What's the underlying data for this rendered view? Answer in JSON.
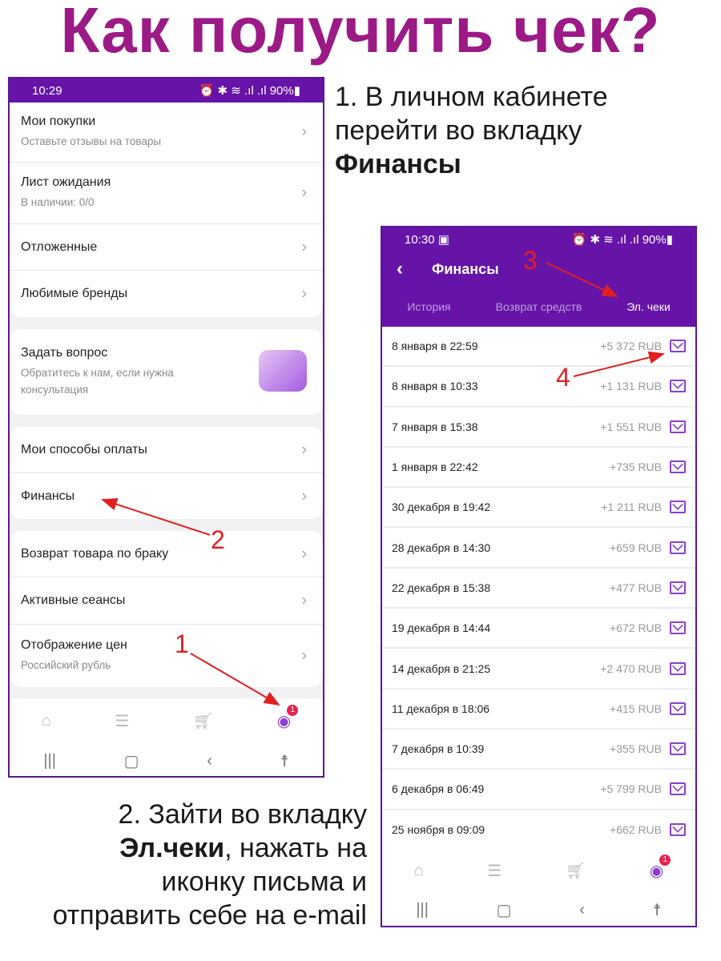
{
  "title": "Как получить чек?",
  "step1": {
    "line1": "1. В личном кабинете",
    "line2": "перейти во вкладку",
    "bold": "Финансы"
  },
  "step2": {
    "num": "2.",
    "l1": " Зайти во вкладку",
    "bold": "Эл.чеки",
    "l2rest": ", нажать на",
    "l3": "иконку письма и",
    "l4": "отправить себе на e-mail"
  },
  "phone1": {
    "time": "10:29",
    "battery": "90%",
    "sections": [
      [
        {
          "label": "Мои покупки",
          "sub": "Оставьте отзывы на товары"
        },
        {
          "label": "Лист ожидания",
          "sub": "В наличии: 0/0"
        },
        {
          "label": "Отложенные"
        },
        {
          "label": "Любимые бренды"
        }
      ],
      [
        {
          "label": "Задать вопрос",
          "sub": "Обратитесь к нам, если нужна консультация"
        }
      ],
      [
        {
          "label": "Мои способы оплаты"
        },
        {
          "label": "Финансы"
        }
      ],
      [
        {
          "label": "Возврат товара по браку"
        },
        {
          "label": "Активные сеансы"
        },
        {
          "label": "Отображение цен",
          "sub": "Российский рубль"
        }
      ]
    ],
    "badge": "1"
  },
  "phone2": {
    "time": "10:30",
    "battery": "90%",
    "header": "Финансы",
    "tabs": [
      "История",
      "Возврат средств",
      "Эл. чеки"
    ],
    "active_tab": "Эл. чеки",
    "rows": [
      {
        "date": "8 января в 22:59",
        "amount": "+5 372 RUB"
      },
      {
        "date": "8 января в 10:33",
        "amount": "+1 131 RUB"
      },
      {
        "date": "7 января в 15:38",
        "amount": "+1 551 RUB"
      },
      {
        "date": "1 января в 22:42",
        "amount": "+735 RUB"
      },
      {
        "date": "30 декабря в 19:42",
        "amount": "+1 211 RUB"
      },
      {
        "date": "28 декабря в 14:30",
        "amount": "+659 RUB"
      },
      {
        "date": "22 декабря в 15:38",
        "amount": "+477 RUB"
      },
      {
        "date": "19 декабря в 14:44",
        "amount": "+672 RUB"
      },
      {
        "date": "14 декабря в 21:25",
        "amount": "+2 470 RUB"
      },
      {
        "date": "11 декабря в 18:06",
        "amount": "+415 RUB"
      },
      {
        "date": "7 декабря в 10:39",
        "amount": "+355 RUB"
      },
      {
        "date": "6 декабря в 06:49",
        "amount": "+5 799 RUB"
      },
      {
        "date": "25 ноября в 09:09",
        "amount": "+662 RUB"
      }
    ],
    "badge": "1"
  },
  "annotations": [
    "1",
    "2",
    "3",
    "4"
  ],
  "colors": {
    "title": "#9c1a86",
    "brand": "#6614a8",
    "arrow": "#e02020"
  }
}
